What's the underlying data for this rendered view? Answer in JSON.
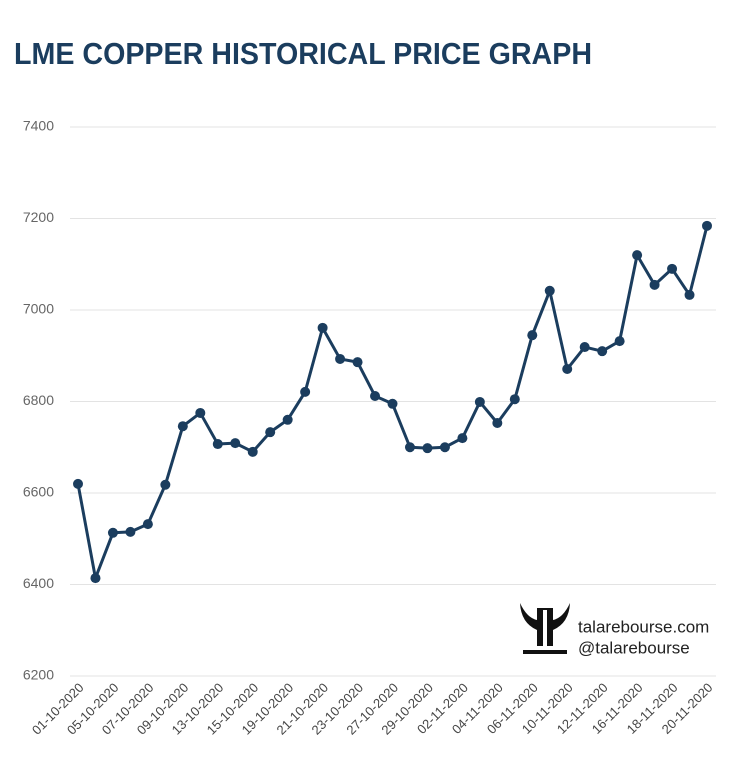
{
  "chart_data": {
    "type": "line",
    "title": "LME COPPER HISTORICAL PRICE GRAPH",
    "categories": [
      "01-10-2020",
      null,
      "05-10-2020",
      null,
      "07-10-2020",
      null,
      "09-10-2020",
      null,
      "13-10-2020",
      null,
      "15-10-2020",
      null,
      "19-10-2020",
      null,
      "21-10-2020",
      null,
      "23-10-2020",
      null,
      "27-10-2020",
      null,
      "29-10-2020",
      null,
      "02-11-2020",
      null,
      "04-11-2020",
      null,
      "06-11-2020",
      null,
      "10-11-2020",
      null,
      "12-11-2020",
      null,
      "16-11-2020",
      null,
      "18-11-2020",
      null,
      "20-11-2020"
    ],
    "series": [
      {
        "name": "LME Copper",
        "color": "#1b3d5e",
        "values": [
          6620,
          6414,
          6513,
          6515,
          6532,
          6618,
          6746,
          6775,
          6707,
          6709,
          6690,
          6733,
          6760,
          6821,
          6961,
          6893,
          6886,
          6812,
          6795,
          6700,
          6698,
          6700,
          6720,
          6799,
          6753,
          6805,
          6945,
          7042,
          6871,
          6919,
          6910,
          6932,
          7120,
          7055,
          7090,
          7033,
          7184
        ]
      }
    ],
    "ylim": [
      6200,
      7400
    ],
    "yticks": [
      6200,
      6400,
      6600,
      6800,
      7000,
      7200,
      7400
    ],
    "grid": true,
    "annotations": [
      "talarebourse.com",
      "@talarebourse"
    ]
  }
}
